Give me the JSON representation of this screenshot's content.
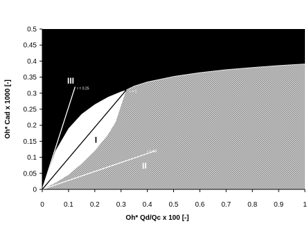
{
  "chart_data": {
    "type": "area",
    "title": "",
    "xlabel": "Oh* Qd/Qc x 100 [-]",
    "ylabel": "Oh* Cad x 1000 [-]",
    "xlim": [
      0,
      1
    ],
    "ylim": [
      0,
      0.5
    ],
    "x_ticks": [
      "0",
      "0.1",
      "0.2",
      "0.3",
      "0.4",
      "0.5",
      "0.6",
      "0.7",
      "0.8",
      "0.9",
      "1"
    ],
    "y_ticks": [
      "0",
      "0.05",
      "0.1",
      "0.15",
      "0.2",
      "0.25",
      "0.3",
      "0.35",
      "0.4",
      "0.45",
      "0.5"
    ],
    "grid": false,
    "legend": "none",
    "colors": {
      "upper_region": "#000000",
      "lower_region_hatch": "#b4b4b4",
      "region_I": "#ffffff",
      "lines": "#ffffff"
    },
    "boundary_curve": {
      "x": [
        0.32,
        0.35,
        0.4,
        0.5,
        0.6,
        0.7,
        0.8,
        0.9,
        1.0
      ],
      "y": [
        0.31,
        0.322,
        0.335,
        0.352,
        0.364,
        0.373,
        0.38,
        0.386,
        0.391
      ]
    },
    "region_I_upper": {
      "x": [
        0,
        0.05,
        0.1,
        0.15,
        0.2,
        0.25,
        0.3,
        0.32
      ],
      "y": [
        0,
        0.12,
        0.19,
        0.235,
        0.265,
        0.288,
        0.305,
        0.31
      ]
    },
    "region_I_lower": {
      "x": [
        0,
        0.05,
        0.1,
        0.15,
        0.2,
        0.25,
        0.28,
        0.3,
        0.32
      ],
      "y": [
        0,
        0.02,
        0.045,
        0.08,
        0.12,
        0.17,
        0.21,
        0.26,
        0.31
      ]
    },
    "ratio_lines": [
      {
        "label": "r = 0.25",
        "x": [
          0,
          0.125
        ],
        "y": [
          0,
          0.32
        ]
      },
      {
        "label": "r = 1",
        "x": [
          0,
          0.32
        ],
        "y": [
          0,
          0.31
        ]
      },
      {
        "label": "r = 4.0",
        "x": [
          0,
          0.43
        ],
        "y": [
          0,
          0.12
        ]
      }
    ],
    "region_labels": [
      {
        "label": "III",
        "x": 0.095,
        "y": 0.33
      },
      {
        "label": "I",
        "x": 0.2,
        "y": 0.145
      },
      {
        "label": "II",
        "x": 0.38,
        "y": 0.065
      }
    ]
  }
}
